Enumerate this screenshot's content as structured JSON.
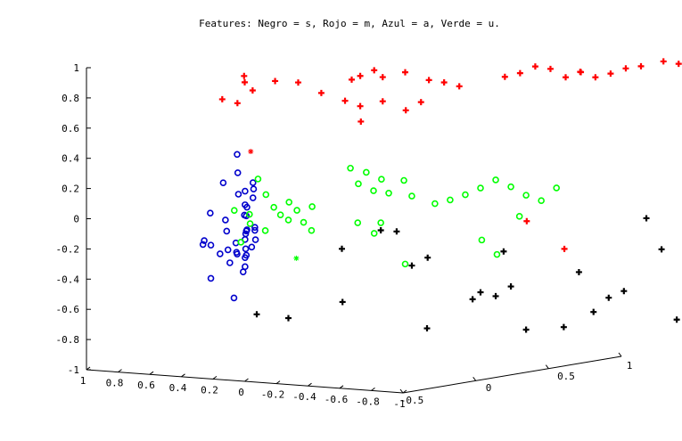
{
  "chart_data": {
    "type": "scatter",
    "projection": "3d",
    "title": "Features: Negro = s, Rojo = m, Azul = a, Verde = u.",
    "zlim": [
      -1,
      1
    ],
    "z_ticks": [
      "-1",
      "-0.8",
      "-0.6",
      "-0.4",
      "-0.2",
      "0",
      "0.2",
      "0.4",
      "0.6",
      "0.8",
      "1"
    ],
    "x_ticks": [
      "1",
      "0.8",
      "0.6",
      "0.4",
      "0.2",
      "0",
      "-0.2",
      "-0.4",
      "-0.6",
      "-0.8",
      "-1"
    ],
    "y_ticks": [
      "-0.5",
      "0",
      "0.5",
      "1"
    ],
    "series": [
      {
        "color": "#ff0000",
        "marker": "plus",
        "points": [
          [
            0.05,
            -0.45,
            1.01
          ],
          [
            0.0,
            -0.5,
            0.98
          ],
          [
            -0.05,
            -0.5,
            0.93
          ],
          [
            0.05,
            -0.6,
            0.88
          ],
          [
            0.0,
            -0.55,
            0.85
          ],
          [
            -0.1,
            -0.4,
            0.98
          ],
          [
            -0.2,
            -0.35,
            0.97
          ],
          [
            -0.3,
            -0.3,
            0.9
          ],
          [
            -0.4,
            -0.2,
            0.98
          ],
          [
            -0.5,
            -0.25,
            1.02
          ],
          [
            -0.45,
            -0.1,
            1.03
          ],
          [
            -0.55,
            -0.15,
            1.0
          ],
          [
            -0.6,
            -0.05,
            1.02
          ],
          [
            -0.75,
            -0.05,
            0.98
          ],
          [
            -0.8,
            0.0,
            0.96
          ],
          [
            -0.85,
            0.05,
            0.93
          ],
          [
            -0.45,
            -0.3,
            0.86
          ],
          [
            -0.5,
            -0.25,
            0.82
          ],
          [
            -0.55,
            -0.15,
            0.84
          ],
          [
            -0.55,
            -0.3,
            0.73
          ],
          [
            -0.65,
            -0.1,
            0.78
          ],
          [
            -0.7,
            -0.05,
            0.83
          ],
          [
            -1.0,
            0.2,
            0.98
          ],
          [
            -1.05,
            0.25,
            1.0
          ],
          [
            -1.1,
            0.3,
            1.04
          ],
          [
            -1.15,
            0.35,
            1.02
          ],
          [
            -1.2,
            0.4,
            0.96
          ],
          [
            -1.25,
            0.45,
            0.99
          ],
          [
            -1.2,
            0.5,
            0.98
          ],
          [
            -1.25,
            0.55,
            0.94
          ],
          [
            -1.3,
            0.6,
            0.96
          ],
          [
            -1.35,
            0.65,
            0.99
          ],
          [
            -1.4,
            0.7,
            1.0
          ],
          [
            -1.45,
            0.8,
            1.02
          ],
          [
            -1.5,
            0.85,
            1.0
          ],
          [
            -1.5,
            0.9,
            1.02
          ],
          [
            -1.0,
            0.35,
            0.0
          ],
          [
            -1.1,
            0.5,
            -0.2
          ]
        ]
      },
      {
        "color": "#ff0000",
        "marker": "star",
        "points": [
          [
            0.1,
            -0.35,
            0.49
          ]
        ]
      },
      {
        "color": "#0000cc",
        "marker": "circle",
        "points": [
          [
            0.6,
            0.1,
            0.36
          ],
          [
            0.55,
            0.05,
            0.25
          ],
          [
            0.5,
            0.1,
            0.18
          ],
          [
            0.45,
            0.05,
            0.15
          ],
          [
            0.5,
            0.0,
            0.12
          ],
          [
            0.55,
            -0.05,
            0.2
          ],
          [
            0.4,
            -0.05,
            0.05
          ],
          [
            0.55,
            0.1,
            0.03
          ],
          [
            0.5,
            0.1,
            0.08
          ],
          [
            0.6,
            0.15,
            -0.05
          ],
          [
            0.35,
            -0.05,
            -0.08
          ],
          [
            0.4,
            -0.05,
            -0.1
          ],
          [
            0.45,
            0.0,
            -0.12
          ],
          [
            0.5,
            0.05,
            -0.15
          ],
          [
            0.55,
            0.1,
            -0.2
          ],
          [
            0.5,
            0.05,
            -0.25
          ],
          [
            0.45,
            0.0,
            -0.28
          ],
          [
            0.6,
            0.1,
            -0.3
          ],
          [
            0.65,
            0.15,
            -0.3
          ],
          [
            0.55,
            0.1,
            -0.32
          ],
          [
            0.6,
            0.2,
            -0.27
          ],
          [
            0.7,
            0.2,
            -0.25
          ],
          [
            0.75,
            0.2,
            -0.3
          ],
          [
            0.8,
            0.2,
            -0.33
          ],
          [
            0.9,
            0.2,
            -0.25
          ],
          [
            0.85,
            0.3,
            -0.2
          ],
          [
            0.95,
            0.3,
            -0.3
          ],
          [
            1.0,
            0.3,
            -0.3
          ],
          [
            0.95,
            0.4,
            -0.15
          ],
          [
            1.0,
            0.35,
            -0.1
          ],
          [
            0.6,
            0.05,
            -0.35
          ],
          [
            0.55,
            0.1,
            -0.38
          ],
          [
            0.7,
            0.25,
            -0.45
          ],
          [
            0.95,
            0.3,
            -0.52
          ],
          [
            0.85,
            0.35,
            -0.65
          ],
          [
            0.3,
            -0.1,
            -0.15
          ],
          [
            0.35,
            -0.05,
            -0.1
          ],
          [
            0.45,
            0.0,
            -0.02
          ],
          [
            0.55,
            0.1,
            0.12
          ]
        ]
      },
      {
        "color": "#00ff00",
        "marker": "circle",
        "points": [
          [
            0.1,
            -0.3,
            0.3
          ],
          [
            0.05,
            -0.3,
            0.2
          ],
          [
            0.0,
            -0.3,
            0.12
          ],
          [
            -0.05,
            -0.25,
            0.15
          ],
          [
            -0.1,
            -0.25,
            0.1
          ],
          [
            -0.15,
            -0.2,
            0.12
          ],
          [
            0.05,
            -0.2,
            0.05
          ],
          [
            0.0,
            -0.2,
            0.02
          ],
          [
            -0.05,
            -0.15,
            0.0
          ],
          [
            -0.1,
            -0.15,
            -0.05
          ],
          [
            0.1,
            -0.25,
            -0.05
          ],
          [
            0.15,
            -0.3,
            0.0
          ],
          [
            0.2,
            -0.25,
            0.05
          ],
          [
            0.25,
            -0.3,
            0.08
          ],
          [
            0.3,
            -0.2,
            -0.15
          ],
          [
            -0.3,
            -0.1,
            0.37
          ],
          [
            -0.4,
            -0.1,
            0.35
          ],
          [
            -0.45,
            -0.05,
            0.3
          ],
          [
            -0.35,
            -0.1,
            0.27
          ],
          [
            -0.4,
            -0.05,
            0.22
          ],
          [
            -0.45,
            0.0,
            0.2
          ],
          [
            -0.5,
            0.05,
            0.28
          ],
          [
            -0.55,
            0.05,
            0.18
          ],
          [
            -0.65,
            0.1,
            0.13
          ],
          [
            -0.7,
            0.15,
            0.15
          ],
          [
            -0.75,
            0.2,
            0.18
          ],
          [
            -0.8,
            0.25,
            0.22
          ],
          [
            -0.85,
            0.3,
            0.27
          ],
          [
            -0.9,
            0.35,
            0.22
          ],
          [
            -0.95,
            0.4,
            0.16
          ],
          [
            -1.0,
            0.45,
            0.12
          ],
          [
            -1.05,
            0.5,
            0.2
          ],
          [
            -0.3,
            -0.05,
            0.0
          ],
          [
            -0.4,
            0.0,
            0.0
          ],
          [
            -0.45,
            -0.1,
            -0.05
          ],
          [
            -0.6,
            -0.05,
            -0.25
          ],
          [
            -0.9,
            0.15,
            -0.1
          ],
          [
            -0.95,
            0.2,
            -0.2
          ],
          [
            -1.0,
            0.3,
            0.04
          ]
        ]
      },
      {
        "color": "#00ff00",
        "marker": "star",
        "points": [
          [
            -0.05,
            -0.2,
            -0.23
          ]
        ]
      },
      {
        "color": "#000000",
        "marker": "plus",
        "points": [
          [
            0.2,
            -0.2,
            -0.62
          ],
          [
            0.0,
            -0.2,
            -0.63
          ],
          [
            -0.2,
            -0.05,
            -0.18
          ],
          [
            -0.25,
            -0.1,
            -0.52
          ],
          [
            -0.4,
            0.0,
            -0.05
          ],
          [
            -0.5,
            0.0,
            -0.05
          ],
          [
            -0.55,
            0.05,
            -0.28
          ],
          [
            -0.65,
            0.05,
            -0.22
          ],
          [
            -0.6,
            0.1,
            -0.7
          ],
          [
            -0.75,
            0.25,
            -0.52
          ],
          [
            -0.8,
            0.25,
            -0.47
          ],
          [
            -0.85,
            0.3,
            -0.5
          ],
          [
            -0.9,
            0.3,
            -0.2
          ],
          [
            -0.9,
            0.35,
            -0.44
          ],
          [
            -0.95,
            0.4,
            -0.73
          ],
          [
            -1.05,
            0.55,
            -0.73
          ],
          [
            -1.1,
            0.6,
            -0.37
          ],
          [
            -1.1,
            0.7,
            -0.65
          ],
          [
            -1.15,
            0.75,
            -0.56
          ],
          [
            -1.2,
            0.8,
            -0.52
          ],
          [
            -1.25,
            0.9,
            -0.05
          ],
          [
            -1.3,
            0.95,
            -0.26
          ],
          [
            -1.35,
            1.0,
            -0.73
          ],
          [
            -1.4,
            1.05,
            -0.68
          ],
          [
            -1.45,
            1.05,
            -0.72
          ],
          [
            -1.5,
            1.1,
            -0.7
          ],
          [
            -1.55,
            1.15,
            -0.59
          ],
          [
            -1.6,
            1.2,
            -0.48
          ],
          [
            -1.55,
            1.15,
            -0.37
          ],
          [
            -1.6,
            1.2,
            -0.38
          ],
          [
            -1.55,
            1.15,
            -0.25
          ],
          [
            -1.65,
            1.25,
            -0.15
          ],
          [
            -1.7,
            1.3,
            -0.05
          ],
          [
            -1.7,
            1.3,
            -0.54
          ]
        ]
      },
      {
        "color": "#000000",
        "marker": "star",
        "points": [
          [
            -1.45,
            1.05,
            -0.65
          ]
        ]
      }
    ]
  }
}
